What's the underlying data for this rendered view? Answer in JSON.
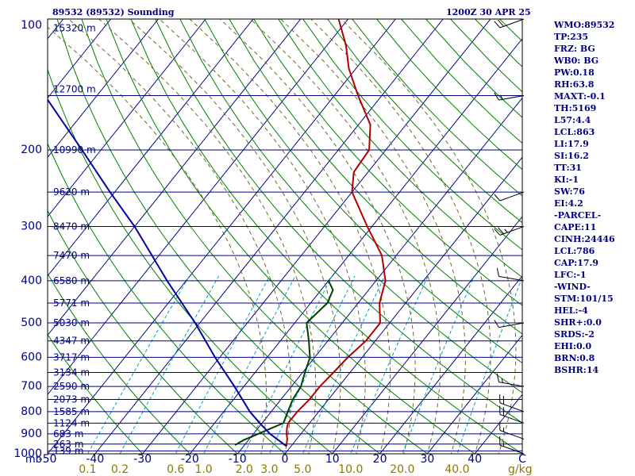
{
  "header": {
    "left": "89532 (89532) Sounding",
    "right": "1200Z 30 APR 25"
  },
  "indices": [
    "WMO:89532",
    "TP:235",
    "FRZ: BG",
    "WB0: BG",
    "PW:0.18",
    "RH:63.8",
    "MAXT:-0.1",
    "TH:5169",
    "L57:4.4",
    "LCL:863",
    "LI:17.9",
    "SI:16.2",
    "TT:31",
    "KI:-1",
    "SW:76",
    "EI:4.2",
    "-PARCEL-",
    "CAPE:11",
    "CINH:24446",
    "LCL:786",
    "CAP:17.9",
    "LFC:-1",
    "-WIND-",
    "STM:101/15",
    "HEL:-4",
    "SHR+:0.0",
    "SRDS:-2",
    "EHI:0.0",
    "BRN:0.8",
    "BSHR:14"
  ],
  "colors": {
    "isobar": "#000080",
    "isotherm": "#000080",
    "dry_adiabat": "#008000",
    "moist_adiabat": "#6b6b2a",
    "mixing_ratio": "#00a0c0",
    "temperature": "#b00000",
    "dewpoint": "#004000",
    "parcel": "#0000a0",
    "frame": "#000000",
    "label": "#000080",
    "mixing_label": "#8b7a00",
    "wind": "#000000"
  },
  "chart_data": {
    "type": "line",
    "subtype": "skew-t log-p",
    "title": "",
    "xlim": [
      -50,
      50
    ],
    "ylim": [
      1000,
      100
    ],
    "pressure_ticks": [
      {
        "p": 100,
        "label": "100"
      },
      {
        "p": 200,
        "label": "200"
      },
      {
        "p": 300,
        "label": "300"
      },
      {
        "p": 400,
        "label": "400"
      },
      {
        "p": 500,
        "label": "500"
      },
      {
        "p": 600,
        "label": "600"
      },
      {
        "p": 700,
        "label": "700"
      },
      {
        "p": 800,
        "label": "800"
      },
      {
        "p": 900,
        "label": "900"
      },
      {
        "p": 1000,
        "label": "1000"
      }
    ],
    "pressure_unit": "mb",
    "temp_ticks": [
      {
        "t": -50,
        "label": "-50"
      },
      {
        "t": -40,
        "label": "-40"
      },
      {
        "t": -30,
        "label": "-30"
      },
      {
        "t": -20,
        "label": "-20"
      },
      {
        "t": -10,
        "label": "-10"
      },
      {
        "t": 0,
        "label": "0"
      },
      {
        "t": 10,
        "label": "10"
      },
      {
        "t": 20,
        "label": "20"
      },
      {
        "t": 30,
        "label": "30"
      },
      {
        "t": 40,
        "label": "40"
      },
      {
        "t": 50,
        "label": "C"
      }
    ],
    "mixing_ratio_labels": [
      {
        "w": 0.1,
        "label": "0.1"
      },
      {
        "w": 0.2,
        "label": "0.2"
      },
      {
        "w": 0.6,
        "label": "0.6"
      },
      {
        "w": 1.0,
        "label": "1.0"
      },
      {
        "w": 2.0,
        "label": "2.0"
      },
      {
        "w": 3.0,
        "label": "3.0"
      },
      {
        "w": 5.0,
        "label": "5.0"
      },
      {
        "w": 10.0,
        "label": "10.0"
      },
      {
        "w": 20.0,
        "label": "20.0"
      },
      {
        "w": 40.0,
        "label": "40.0"
      }
    ],
    "mixing_ratio_unit": "g/kg",
    "height_levels": [
      {
        "p": 105,
        "label": "15320 m"
      },
      {
        "p": 145,
        "label": "12700 m"
      },
      {
        "p": 200,
        "label": "10990 m"
      },
      {
        "p": 250,
        "label": "9620 m"
      },
      {
        "p": 300,
        "label": "8470 m"
      },
      {
        "p": 350,
        "label": "7470 m"
      },
      {
        "p": 400,
        "label": "6580 m"
      },
      {
        "p": 450,
        "label": "5771 m"
      },
      {
        "p": 500,
        "label": "5030 m"
      },
      {
        "p": 550,
        "label": "4347 m"
      },
      {
        "p": 600,
        "label": "3717 m"
      },
      {
        "p": 650,
        "label": "3134 m"
      },
      {
        "p": 700,
        "label": "2590 m"
      },
      {
        "p": 750,
        "label": "2073 m"
      },
      {
        "p": 800,
        "label": "1585 m"
      },
      {
        "p": 850,
        "label": "1124 m"
      },
      {
        "p": 900,
        "label": "683 m"
      },
      {
        "p": 950,
        "label": "263 m"
      },
      {
        "p": 985,
        "label": "139 m"
      }
    ],
    "series": [
      {
        "key": "temperature",
        "points": [
          [
            960,
            -1.0
          ],
          [
            925,
            -2.0
          ],
          [
            900,
            -3.0
          ],
          [
            870,
            -4.0
          ],
          [
            850,
            -4.5
          ],
          [
            800,
            -4.5
          ],
          [
            750,
            -4.0
          ],
          [
            700,
            -4.0
          ],
          [
            650,
            -3.5
          ],
          [
            600,
            -3.0
          ],
          [
            550,
            -2.0
          ],
          [
            500,
            -2.0
          ],
          [
            450,
            -5.5
          ],
          [
            400,
            -8.0
          ],
          [
            350,
            -13.0
          ],
          [
            300,
            -21.0
          ],
          [
            250,
            -30.0
          ],
          [
            225,
            -33.0
          ],
          [
            200,
            -33.5
          ],
          [
            175,
            -37.5
          ],
          [
            150,
            -45.0
          ],
          [
            130,
            -51.5
          ],
          [
            115,
            -56.0
          ],
          [
            100,
            -62.0
          ]
        ]
      },
      {
        "key": "dewpoint",
        "points": [
          [
            955,
            -12.0
          ],
          [
            930,
            -11.0
          ],
          [
            900,
            -9.0
          ],
          [
            870,
            -7.0
          ],
          [
            850,
            -5.5
          ],
          [
            800,
            -6.5
          ],
          [
            750,
            -7.5
          ],
          [
            700,
            -8.0
          ],
          [
            650,
            -9.5
          ],
          [
            600,
            -11.0
          ],
          [
            550,
            -14.0
          ],
          [
            500,
            -17.5
          ],
          [
            450,
            -16.5
          ],
          [
            420,
            -17.5
          ],
          [
            400,
            -20.0
          ]
        ]
      },
      {
        "key": "parcel",
        "points": [
          [
            960,
            -1.0
          ],
          [
            900,
            -6.5
          ],
          [
            850,
            -10.5
          ],
          [
            800,
            -14.5
          ],
          [
            700,
            -22.0
          ],
          [
            600,
            -31.0
          ],
          [
            500,
            -41.0
          ],
          [
            400,
            -54.0
          ],
          [
            300,
            -70.0
          ],
          [
            250,
            -81.0
          ],
          [
            200,
            -94.0
          ],
          [
            150,
            -111.0
          ],
          [
            105,
            -128.0
          ]
        ]
      }
    ],
    "wind_barbs": [
      {
        "p": 100,
        "dir": 250,
        "spd": 20
      },
      {
        "p": 150,
        "dir": 260,
        "spd": 15
      },
      {
        "p": 250,
        "dir": 250,
        "spd": 10
      },
      {
        "p": 300,
        "dir": 250,
        "spd": 25
      },
      {
        "p": 400,
        "dir": 280,
        "spd": 10
      },
      {
        "p": 500,
        "dir": 260,
        "spd": 10
      },
      {
        "p": 700,
        "dir": 280,
        "spd": 15
      },
      {
        "p": 800,
        "dir": 290,
        "spd": 20
      },
      {
        "p": 850,
        "dir": 290,
        "spd": 20
      },
      {
        "p": 925,
        "dir": 290,
        "spd": 15
      },
      {
        "p": 1000,
        "dir": 290,
        "spd": 15
      }
    ]
  }
}
